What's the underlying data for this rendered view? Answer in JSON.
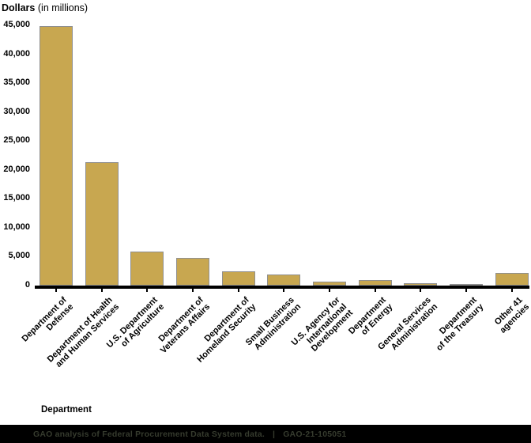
{
  "title": {
    "bold": "Dollars",
    "rest": "(in millions)"
  },
  "x_axis_title": "Department",
  "footer": {
    "source": "GAO analysis of Federal Procurement Data System data.",
    "separator": "|",
    "report_id": "GAO-21-105051"
  },
  "colors": {
    "bar_fill": "#C8A750",
    "bar_border": "#8F8F8F",
    "axis": "#000000",
    "footer_bg": "#000000",
    "footer_text": "#363b2e"
  },
  "chart_data": {
    "type": "bar",
    "title": "Dollars (in millions)",
    "xlabel": "Department",
    "ylabel": "",
    "ylim": [
      0,
      45000
    ],
    "ytick_step": 5000,
    "yticks": [
      "0",
      "5,000",
      "10,000",
      "15,000",
      "20,000",
      "25,000",
      "30,000",
      "35,000",
      "40,000",
      "45,000"
    ],
    "grid": false,
    "legend": "none",
    "categories": [
      "Department of Defense",
      "Department of Health and Human Services",
      "U.S. Department of Agriculture",
      "Department of Veterans Affairs",
      "Department of Homeland Security",
      "Small Business Administration",
      "U.S. Agency for International Development",
      "Department of Energy",
      "General Services Administration",
      "Department of the Treasury",
      "Other 41 agencies"
    ],
    "category_label_lines": [
      [
        "Department of",
        "Defense"
      ],
      [
        "Department of Health",
        "and Human Services"
      ],
      [
        "U.S. Department",
        "of Agriculture"
      ],
      [
        "Department of",
        "Veterans Affairs"
      ],
      [
        "Department of",
        "Homeland Security"
      ],
      [
        "Small Business",
        "Administration"
      ],
      [
        "U.S. Agency for",
        "International",
        "Development"
      ],
      [
        "Department",
        "of Energy"
      ],
      [
        "General Services",
        "Administration"
      ],
      [
        "Department",
        "of the Treasury"
      ],
      [
        "Other 41",
        "agencies"
      ]
    ],
    "values": [
      44800,
      21300,
      5900,
      4800,
      2500,
      1900,
      750,
      930,
      470,
      280,
      2250
    ]
  }
}
